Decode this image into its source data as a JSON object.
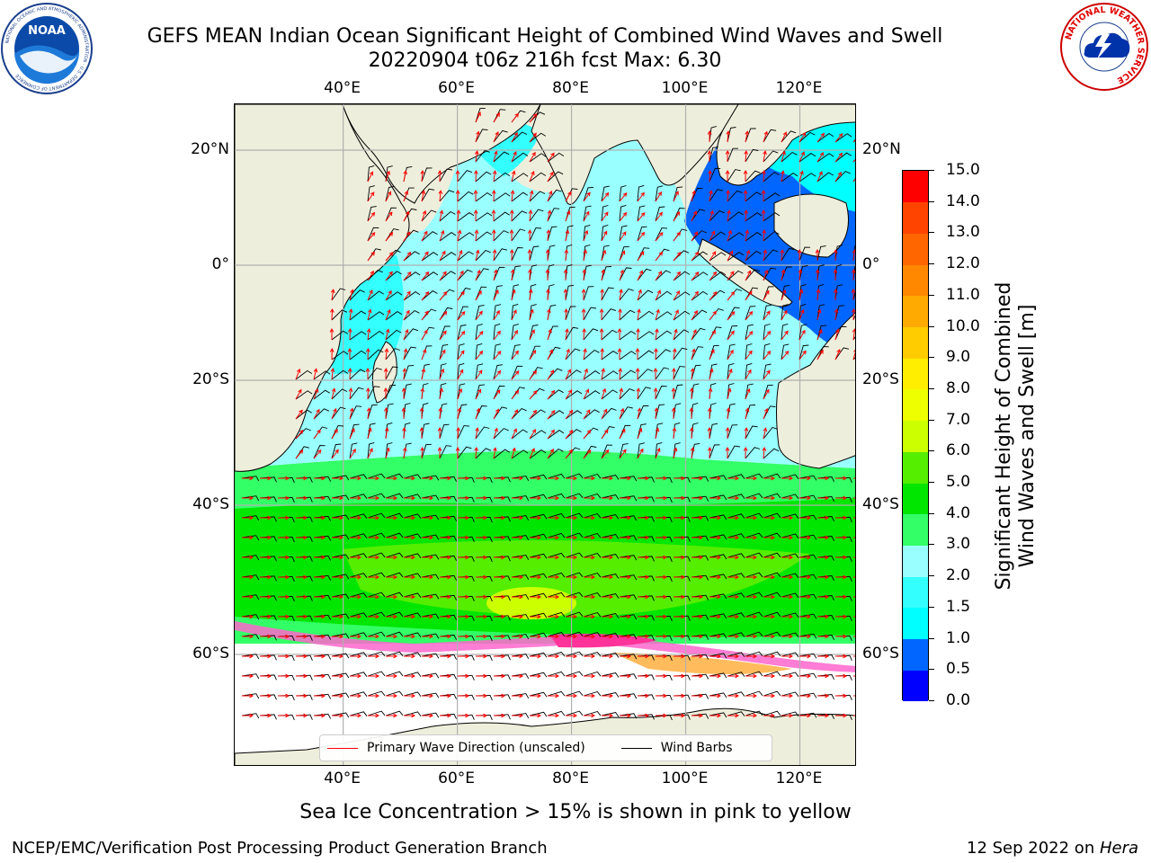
{
  "title": {
    "line1": "GEFS MEAN Indian Ocean Significant Height of Combined Wind Waves and Swell",
    "line2": "20220904 t06z 216h fcst   Max: 6.30"
  },
  "logos": {
    "noaa": {
      "icon": "noaa-logo",
      "text": "NOAA",
      "ring_text": "NATIONAL OCEANIC AND ATMOSPHERIC ADMINISTRATION · U.S. DEPARTMENT OF COMMERCE"
    },
    "nws": {
      "icon": "nws-logo",
      "ring_text": "NATIONAL WEATHER SERVICE"
    }
  },
  "map": {
    "lon_ticks": [
      "40°E",
      "60°E",
      "80°E",
      "100°E",
      "120°E"
    ],
    "lat_ticks": [
      "20°N",
      "0°",
      "20°S",
      "40°S",
      "60°S"
    ],
    "lon_values": [
      40,
      60,
      80,
      100,
      120
    ],
    "lat_values": [
      20,
      0,
      -20,
      -40,
      -60
    ],
    "colors": {
      "land": "#eeeedc",
      "ice_free_water": "#ffffff",
      "wave_arrow": "#ff0000",
      "wind_barb": "#000000",
      "grid": "#b0b0b0"
    }
  },
  "legend": {
    "wave_label": "Primary Wave Direction (unscaled)",
    "wind_label": "Wind Barbs",
    "wave_color": "#ff0000",
    "wind_color": "#000000"
  },
  "colorbar": {
    "label_line1": "Significant Height of Combined",
    "label_line2": "Wind Waves and Swell [m]",
    "tick_labels": [
      "0.0",
      "0.5",
      "1.0",
      "1.5",
      "2.0",
      "3.0",
      "4.0",
      "5.0",
      "6.0",
      "7.0",
      "8.0",
      "9.0",
      "10.0",
      "11.0",
      "12.0",
      "13.0",
      "14.0",
      "15.0"
    ],
    "colors": [
      "#0000ff",
      "#0066ff",
      "#00ffff",
      "#33ffff",
      "#99ffff",
      "#33ff66",
      "#00e600",
      "#55ee00",
      "#ccff00",
      "#eeff00",
      "#ffee00",
      "#ffcc00",
      "#ffaa00",
      "#ff8800",
      "#ff6600",
      "#ff4400",
      "#ff0000"
    ]
  },
  "subtitle": "Sea Ice Concentration > 15% is shown in pink to yellow",
  "footer": {
    "left": "NCEP/EMC/Verification Post Processing Product Generation Branch",
    "right_prefix": "12 Sep 2022 on ",
    "right_host": "Hera"
  }
}
